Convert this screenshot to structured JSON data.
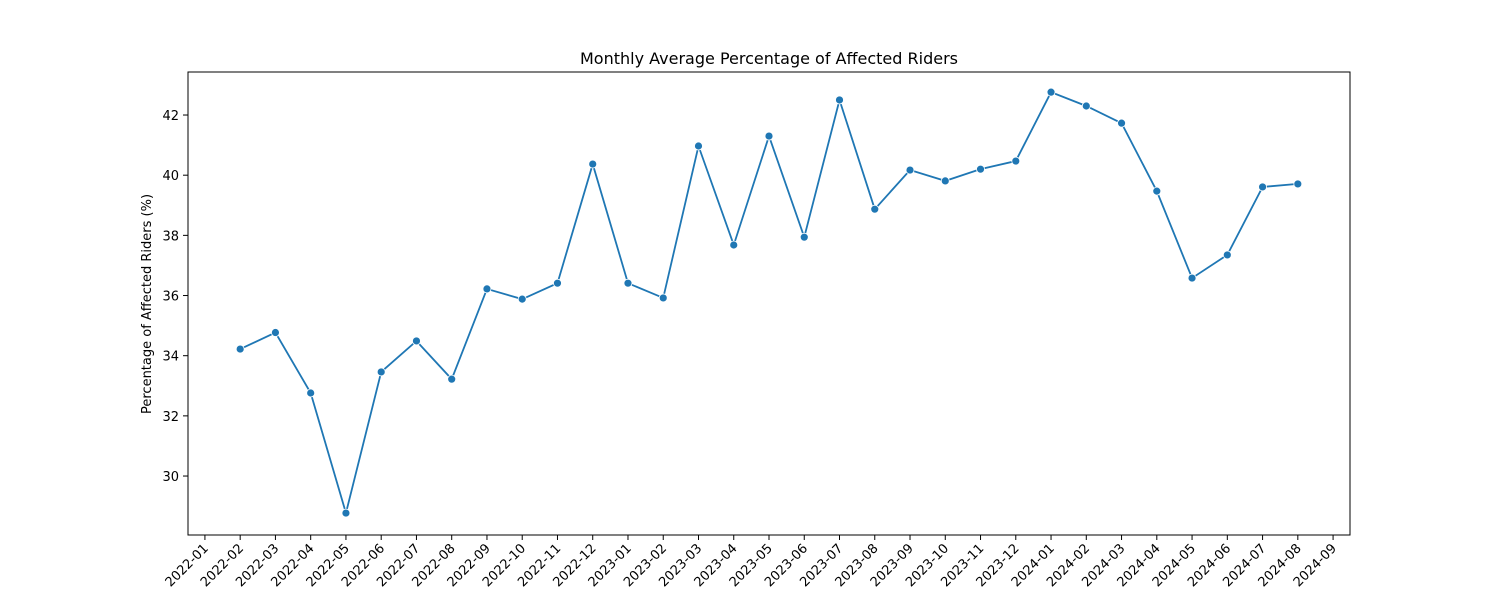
{
  "chart_data": {
    "type": "line",
    "title": "Monthly Average Percentage of Affected Riders",
    "y_label": "Percentage of Affected Riders (%)",
    "color": "#1f77b4",
    "x": [
      "2022-02",
      "2022-03",
      "2022-04",
      "2022-05",
      "2022-06",
      "2022-07",
      "2022-08",
      "2022-09",
      "2022-10",
      "2022-11",
      "2022-12",
      "2023-01",
      "2023-02",
      "2023-03",
      "2023-04",
      "2023-05",
      "2023-06",
      "2023-07",
      "2023-08",
      "2023-09",
      "2023-10",
      "2023-11",
      "2023-12",
      "2024-01",
      "2024-02",
      "2024-03",
      "2024-04",
      "2024-05",
      "2024-06",
      "2024-07",
      "2024-08"
    ],
    "values": [
      34.22,
      34.77,
      32.76,
      28.77,
      33.46,
      34.49,
      33.22,
      36.22,
      35.88,
      36.41,
      40.37,
      36.41,
      35.92,
      40.97,
      37.68,
      41.3,
      37.94,
      42.5,
      38.87,
      40.17,
      39.81,
      40.2,
      40.47,
      42.76,
      42.3,
      41.73,
      39.47,
      36.58,
      37.35,
      39.61,
      39.71
    ],
    "ylim": [
      28.04,
      43.43
    ],
    "yticks": [
      30,
      32,
      34,
      36,
      38,
      40,
      42
    ],
    "xticks": [
      "2022-01",
      "2022-02",
      "2022-03",
      "2022-04",
      "2022-05",
      "2022-06",
      "2022-07",
      "2022-08",
      "2022-09",
      "2022-10",
      "2022-11",
      "2022-12",
      "2023-01",
      "2023-02",
      "2023-03",
      "2023-04",
      "2023-05",
      "2023-06",
      "2023-07",
      "2023-08",
      "2023-09",
      "2023-10",
      "2023-11",
      "2023-12",
      "2024-01",
      "2024-02",
      "2024-03",
      "2024-04",
      "2024-05",
      "2024-06",
      "2024-07",
      "2024-08",
      "2024-09"
    ],
    "grid": false
  }
}
